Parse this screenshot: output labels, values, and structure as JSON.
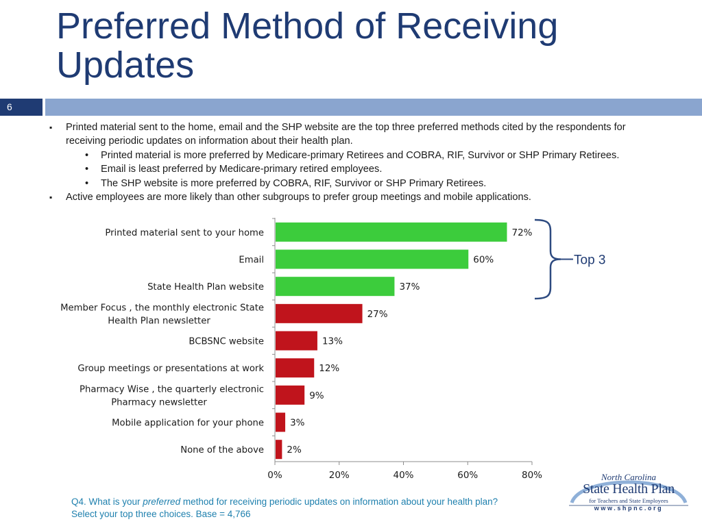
{
  "slide": {
    "title": "Preferred Method of Receiving Updates",
    "number": "6"
  },
  "bullets": [
    {
      "level": 1,
      "text": "Printed material sent to the home, email and the SHP website are the top three preferred methods cited by the respondents for receiving periodic updates on information about their health plan."
    },
    {
      "level": 2,
      "text": "Printed material is more preferred by Medicare-primary Retirees and COBRA, RIF, Survivor or SHP Primary Retirees."
    },
    {
      "level": 2,
      "text": "Email is least preferred by Medicare-primary retired employees."
    },
    {
      "level": 2,
      "text": "The SHP website is more preferred by COBRA, RIF, Survivor or SHP Primary Retirees."
    },
    {
      "level": 1,
      "text": "Active employees are more likely than other subgroups to prefer group meetings and mobile applications."
    }
  ],
  "chart_data": {
    "type": "bar",
    "orientation": "horizontal",
    "categories": [
      "Printed material  sent to your home",
      "Email",
      "State Health Plan website",
      "Member Focus , the monthly electronic State Health Plan newsletter",
      "BCBSNC website",
      "Group meetings or presentations at work",
      "Pharmacy Wise , the quarterly electronic Pharmacy newsletter",
      "Mobile application for your phone",
      "None of the above"
    ],
    "category_lines": [
      [
        "Printed material  sent to your home"
      ],
      [
        "Email"
      ],
      [
        "State Health Plan website"
      ],
      [
        "Member Focus , the monthly electronic State",
        "Health Plan newsletter"
      ],
      [
        "BCBSNC website"
      ],
      [
        "Group meetings or presentations at work"
      ],
      [
        "Pharmacy Wise , the quarterly electronic",
        "Pharmacy newsletter"
      ],
      [
        "Mobile application for your phone"
      ],
      [
        "None of the above"
      ]
    ],
    "values": [
      72,
      60,
      37,
      27,
      13,
      12,
      9,
      3,
      2
    ],
    "value_labels": [
      "72%",
      "60%",
      "37%",
      "27%",
      "13%",
      "12%",
      "9%",
      "3%",
      "2%"
    ],
    "highlight_count": 3,
    "colors": {
      "top": "#3ccc3c",
      "other": "#c0141c"
    },
    "xlim": [
      0,
      80
    ],
    "xticks": [
      "0%",
      "20%",
      "40%",
      "60%",
      "80%"
    ],
    "annotation": "Top 3"
  },
  "footnote": {
    "pre": "Q4. What is your ",
    "emph": "preferred",
    "post": " method for receiving periodic updates on information about your health plan?",
    "line2": "Select your top three choices.  Base = 4,766"
  },
  "logo": {
    "line1": "North Carolina",
    "line2": "State Health Plan",
    "line3": "for Teachers and State Employees",
    "line4": "www.shpnc.org"
  }
}
